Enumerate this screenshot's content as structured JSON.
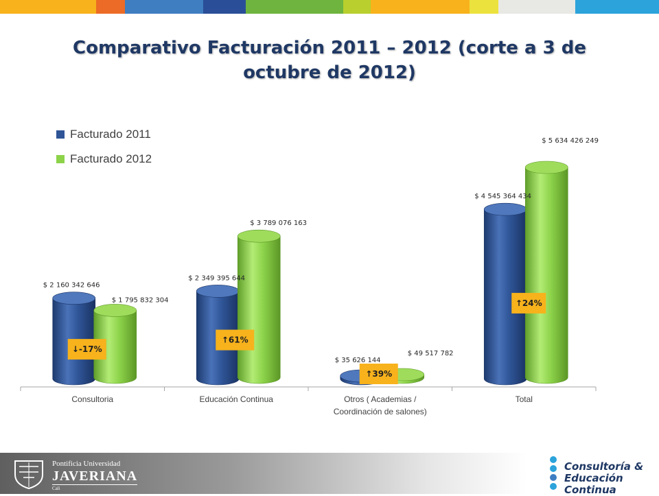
{
  "top_bar_colors": [
    "#f7b21c",
    "#ec6b26",
    "#3f7ec1",
    "#2a4e97",
    "#6eb43f",
    "#b8cf2e",
    "#f7b21c",
    "#ece23e",
    "#e8e8e4",
    "#2ca3da"
  ],
  "footer": {
    "university_line1": "Pontificia Universidad",
    "university_name": "JAVERIANA",
    "university_city": "Cali",
    "unit_line1": "Consultoría &",
    "unit_line2": "Educación Continua"
  },
  "chart_data": {
    "type": "bar",
    "title": "Comparativo Facturación 2011 – 2012 (corte a 3 de octubre de 2012)",
    "categories": [
      "Consultoria",
      "Educación Continua",
      "Otros ( Academias / Coordinación de salones)",
      "Total"
    ],
    "category_lines": [
      [
        "Consultoria"
      ],
      [
        "Educación Continua"
      ],
      [
        "Otros ( Academias /",
        "Coordinación de salones)"
      ],
      [
        "Total"
      ]
    ],
    "series": [
      {
        "name": "Facturado 2011",
        "color": "#2f5597",
        "values": [
          2160342646,
          2349395644,
          35626144,
          4545364434
        ],
        "labels": [
          "$ 2 160 342 646",
          "$ 2 349 395 644",
          "$ 35 626 144",
          "$ 4 545 364 434"
        ]
      },
      {
        "name": "Facturado 2012",
        "color": "#8dd34a",
        "values": [
          1795832304,
          3789076163,
          49517782,
          5634426249
        ],
        "labels": [
          "$ 1 795 832 304",
          "$ 3 789 076 163",
          "$ 49 517 782",
          "$ 5 634 426 249"
        ]
      }
    ],
    "changes": [
      "↓-17%",
      "↑61%",
      "↑39%",
      "↑24%"
    ],
    "change_color": "#f7b21c",
    "ylim": [
      0,
      5634426249
    ],
    "legend_position": "top-left",
    "grid": false,
    "style": "3d-cylinder"
  }
}
